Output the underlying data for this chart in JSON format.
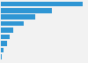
{
  "values": [
    1000000,
    620000,
    420000,
    280000,
    150000,
    110000,
    75000,
    28000,
    15000
  ],
  "bar_color": "#2f96d4",
  "background_color": "#f2f2f2",
  "grid_color": "#cccccc",
  "xmax": 1050000,
  "bar_height": 0.75
}
